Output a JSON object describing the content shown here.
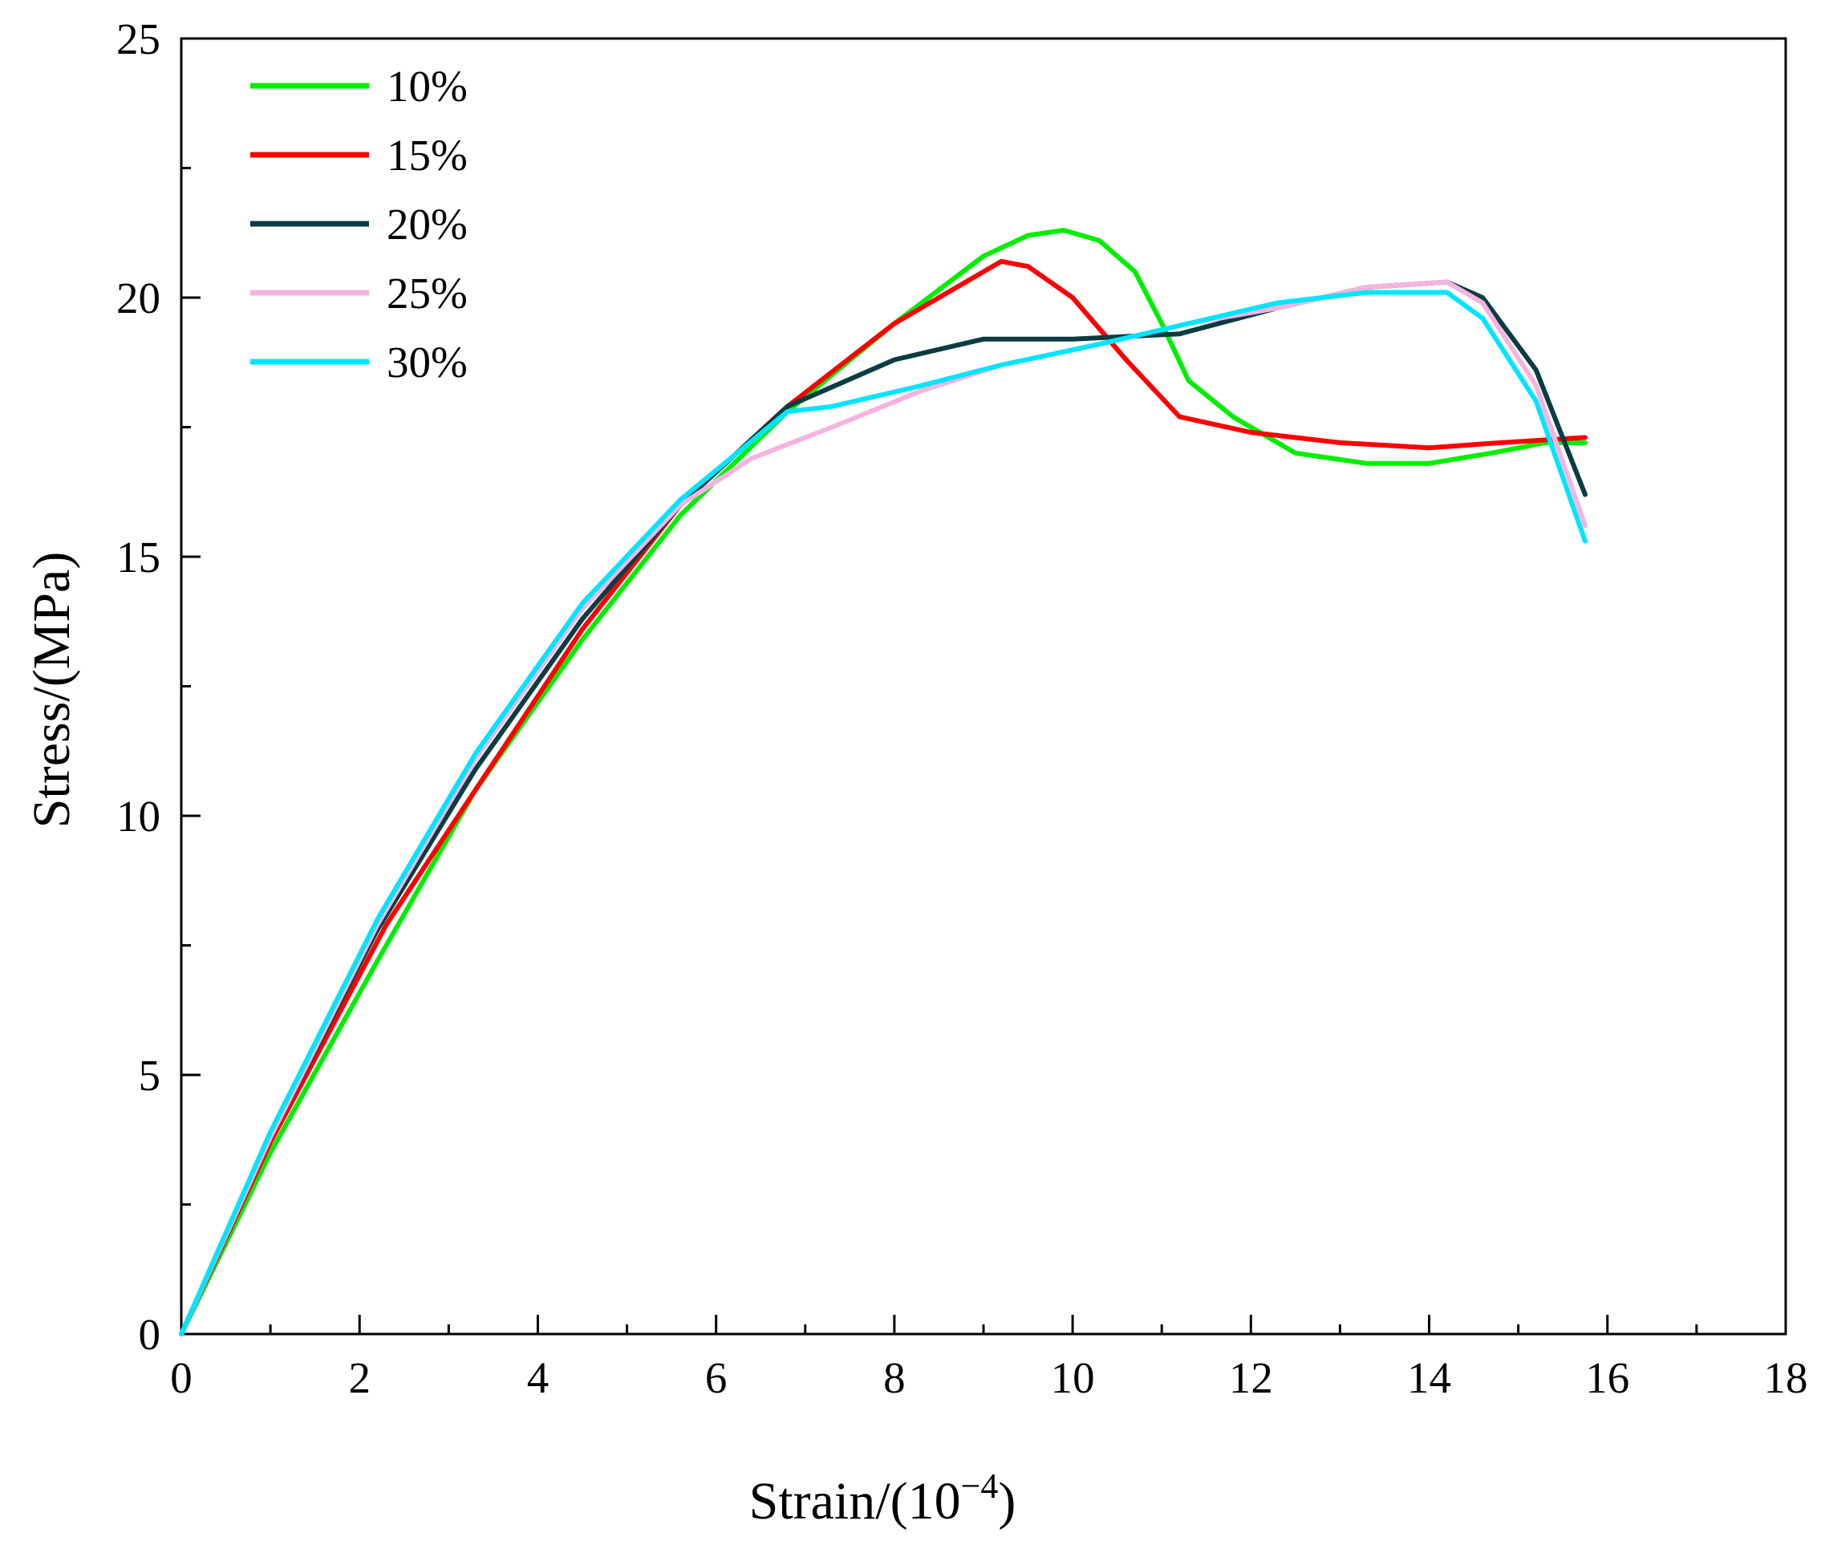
{
  "chart_data": {
    "type": "line",
    "title": "",
    "xlabel": "Strain/(10",
    "xlabel_sup": "−4",
    "xlabel_tail": ")",
    "ylabel": "Stress/(MPa)",
    "xlim": [
      0,
      18
    ],
    "ylim": [
      0,
      25
    ],
    "x_major_ticks": [
      0,
      2,
      4,
      6,
      8,
      10,
      12,
      14,
      16,
      18
    ],
    "x_tick_labels": [
      "0",
      "2",
      "4",
      "6",
      "8",
      "10",
      "12",
      "14",
      "16",
      "18"
    ],
    "x_minor_step": 1,
    "y_major_ticks": [
      0,
      5,
      10,
      15,
      20,
      25
    ],
    "y_tick_labels": [
      "0",
      "5",
      "10",
      "15",
      "20",
      "25"
    ],
    "y_minor_step": 2.5,
    "grid": false,
    "legend_position": "top-left",
    "series": [
      {
        "name": "10%",
        "color": "#00ee00",
        "points": [
          [
            0,
            0
          ],
          [
            1,
            3.5
          ],
          [
            2.2,
            7.2
          ],
          [
            3.3,
            10.5
          ],
          [
            4.5,
            13.4
          ],
          [
            5.6,
            15.8
          ],
          [
            6.8,
            17.8
          ],
          [
            8,
            19.5
          ],
          [
            9,
            20.8
          ],
          [
            9.5,
            21.2
          ],
          [
            9.9,
            21.3
          ],
          [
            10.3,
            21.1
          ],
          [
            10.7,
            20.5
          ],
          [
            11,
            19.5
          ],
          [
            11.3,
            18.4
          ],
          [
            11.8,
            17.7
          ],
          [
            12.5,
            17.0
          ],
          [
            13.3,
            16.8
          ],
          [
            14,
            16.8
          ],
          [
            14.7,
            17.0
          ],
          [
            15.3,
            17.2
          ],
          [
            15.75,
            17.2
          ]
        ]
      },
      {
        "name": "15%",
        "color": "#ff0000",
        "points": [
          [
            0,
            0
          ],
          [
            1,
            3.7
          ],
          [
            2.3,
            7.9
          ],
          [
            3.3,
            10.5
          ],
          [
            4.5,
            13.6
          ],
          [
            5.6,
            16.0
          ],
          [
            6.8,
            17.9
          ],
          [
            8,
            19.5
          ],
          [
            8.8,
            20.3
          ],
          [
            9.2,
            20.7
          ],
          [
            9.5,
            20.6
          ],
          [
            10,
            20.0
          ],
          [
            10.6,
            18.8
          ],
          [
            11.2,
            17.7
          ],
          [
            12,
            17.4
          ],
          [
            13,
            17.2
          ],
          [
            14,
            17.1
          ],
          [
            14.8,
            17.2
          ],
          [
            15.75,
            17.3
          ]
        ]
      },
      {
        "name": "20%",
        "color": "#0a3d42",
        "points": [
          [
            0,
            0
          ],
          [
            1,
            3.8
          ],
          [
            2.2,
            7.8
          ],
          [
            3.3,
            10.9
          ],
          [
            4.5,
            13.8
          ],
          [
            5.6,
            16.0
          ],
          [
            6.8,
            17.9
          ],
          [
            8,
            18.8
          ],
          [
            9,
            19.2
          ],
          [
            10,
            19.2
          ],
          [
            11.2,
            19.3
          ],
          [
            12.3,
            19.8
          ],
          [
            13.3,
            20.2
          ],
          [
            14.2,
            20.3
          ],
          [
            14.6,
            20.0
          ],
          [
            15.2,
            18.6
          ],
          [
            15.75,
            16.2
          ]
        ]
      },
      {
        "name": "25%",
        "color": "#f7b3e0",
        "points": [
          [
            0,
            0
          ],
          [
            1,
            3.8
          ],
          [
            2.2,
            7.9
          ],
          [
            3.3,
            11.1
          ],
          [
            4.5,
            14.0
          ],
          [
            5.6,
            16.0
          ],
          [
            6.4,
            16.9
          ],
          [
            7.3,
            17.5
          ],
          [
            8.3,
            18.2
          ],
          [
            9.2,
            18.7
          ],
          [
            10.3,
            19.1
          ],
          [
            11.3,
            19.5
          ],
          [
            12.3,
            19.8
          ],
          [
            13.3,
            20.2
          ],
          [
            14.2,
            20.3
          ],
          [
            14.6,
            19.9
          ],
          [
            15.2,
            18.3
          ],
          [
            15.75,
            15.6
          ]
        ]
      },
      {
        "name": "30%",
        "color": "#00e5ff",
        "points": [
          [
            0,
            0
          ],
          [
            1,
            3.9
          ],
          [
            2.2,
            8.0
          ],
          [
            3.3,
            11.2
          ],
          [
            4.5,
            14.1
          ],
          [
            5.6,
            16.1
          ],
          [
            6.8,
            17.8
          ],
          [
            7.3,
            17.9
          ],
          [
            8.3,
            18.3
          ],
          [
            9.2,
            18.7
          ],
          [
            10.3,
            19.1
          ],
          [
            11.3,
            19.5
          ],
          [
            12.3,
            19.9
          ],
          [
            13.3,
            20.1
          ],
          [
            14.2,
            20.1
          ],
          [
            14.6,
            19.6
          ],
          [
            15.2,
            18.0
          ],
          [
            15.75,
            15.3
          ]
        ]
      }
    ]
  }
}
